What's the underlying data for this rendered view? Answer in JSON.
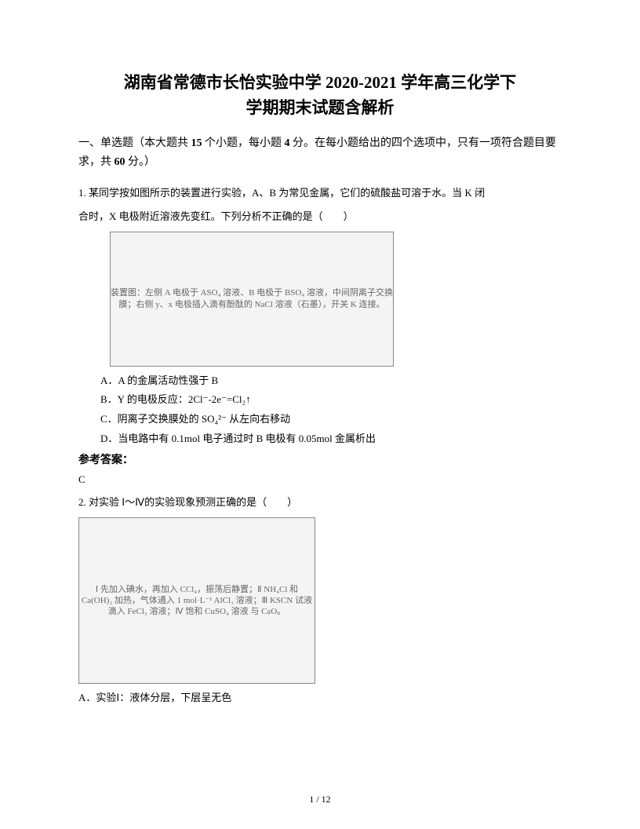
{
  "title_line1": "湖南省常德市长怡实验中学 2020-2021 学年高三化学下",
  "title_line2": "学期期末试题含解析",
  "section_heading": "一、单选题（本大题共 15 个小题，每小题 4 分。在每小题给出的四个选项中，只有一项符合题目要求，共 60 分。）",
  "q1_stem_a": "1. 某同学按如图所示的装置进行实验，A、B 为常见金属，它们的硫酸盐可溶于水。当 K 闭",
  "q1_stem_b": "合时，X 电极附近溶液先变红。下列分析不正确的是（　　）",
  "q1_fig_caption": "装置图：左侧 A 电极于 ASO₄ 溶液、B 电极于 BSO₄ 溶液，中间阴离子交换膜；右侧 y、x 电极插入滴有酚酞的 NaCl 溶液（石墨），开关 K 连接。",
  "q1_optA": "A．A 的金属活动性强于 B",
  "q1_optB": "B．Y 的电极反应：2Cl⁻-2e⁻=Cl₂↑",
  "q1_optC": "C．阴离子交换膜处的 SO₄²⁻ 从左向右移动",
  "q1_optD": "D．当电路中有 0.1mol 电子通过时 B 电极有 0.05mol 金属析出",
  "answer_label": "参考答案：",
  "q1_answer": "C",
  "q2_stem": "2. 对实验 Ⅰ～Ⅳ的实验现象预测正确的是（　　）",
  "q2_fig_caption": "Ⅰ 先加入碘水，再加入 CCl₄，振荡后静置；Ⅱ NH₄Cl 和 Ca(OH)₂ 加热，气体通入 1 mol·L⁻¹ AlCl₃ 溶液；Ⅲ KSCN 试液 滴入 FeCl₃ 溶液；Ⅳ 饱和 CuSO₄ 溶液 与 CaO。",
  "q2_optA": "A．实验Ⅰ：液体分层，下层呈无色",
  "footer": "1 / 12"
}
